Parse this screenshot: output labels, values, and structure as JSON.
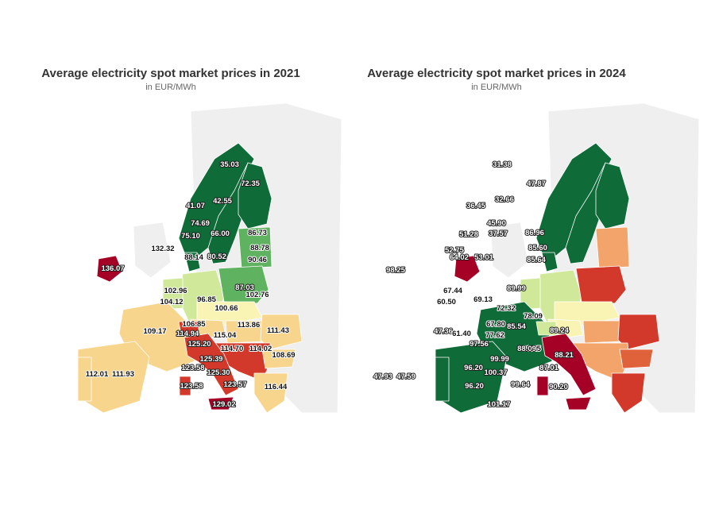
{
  "colors": {
    "dark_green": "#0f6b38",
    "green": "#5fb25f",
    "light_green": "#cfe89a",
    "pale_yellow": "#f9f4b4",
    "sand": "#f8d58c",
    "light_orange": "#f2a46b",
    "orange": "#e0623b",
    "red": "#d3392b",
    "dark_red": "#a50026",
    "background_land": "#efefef",
    "background_sea": "#ffffff"
  },
  "maps": [
    {
      "title": "Average electricity spot market prices in 2021",
      "subtitle": "in EUR/MWh",
      "values": [
        "35.03",
        "72.35",
        "41.07",
        "42.55",
        "74.69",
        "66.00",
        "75.10",
        "86.73",
        "80.52",
        "88.78",
        "88.14",
        "90.46",
        "132.32",
        "136.07",
        "87.03",
        "102.96",
        "104.12",
        "96.85",
        "100.66",
        "102.76",
        "109.17",
        "106.85",
        "113.86",
        "111.43",
        "114.94",
        "115.04",
        "125.20",
        "114.70",
        "114.02",
        "108.69",
        "125.39",
        "112.01",
        "111.93",
        "123.58",
        "125.30",
        "123.58",
        "123.57",
        "116.44",
        "129.02"
      ]
    },
    {
      "title": "Average electricity spot market prices in 2024",
      "subtitle": "in EUR/MWh",
      "values": [
        "31.38",
        "47.87",
        "36.45",
        "32.66",
        "45.90",
        "51.28",
        "37.57",
        "86.96",
        "53.01",
        "85.60",
        "52.75",
        "64.02",
        "85.64",
        "98.25",
        "89.99",
        "67.44",
        "60.50",
        "69.13",
        "72.32",
        "78.09",
        "47.36",
        "67.80",
        "85.54",
        "89.24",
        "61.40",
        "77.62",
        "97.56",
        "81.25",
        "88.09",
        "88.21",
        "99.99",
        "47.93",
        "47.59",
        "96.20",
        "100.37",
        "87.01",
        "96.20",
        "99.64",
        "90.20",
        "101.17"
      ]
    }
  ]
}
